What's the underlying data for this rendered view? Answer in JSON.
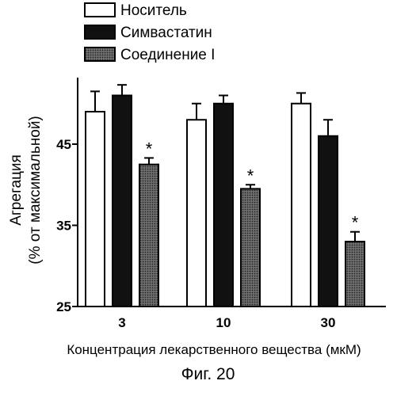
{
  "chart_data": {
    "type": "bar",
    "categories": [
      "3",
      "10",
      "30"
    ],
    "series": [
      {
        "name": "Носитель",
        "fill": "#ffffff",
        "values": [
          49,
          48,
          50
        ],
        "errors": [
          2.5,
          2,
          1.3
        ]
      },
      {
        "name": "Симвастатин",
        "fill": "#111111",
        "values": [
          51,
          50,
          46
        ],
        "errors": [
          1.3,
          1,
          2
        ]
      },
      {
        "name": "Соединение I",
        "fill": "#5a5a5a",
        "values": [
          42.5,
          39.5,
          33
        ],
        "errors": [
          0.8,
          0.5,
          1.2
        ]
      }
    ],
    "significance": [
      "*",
      "*",
      "*"
    ],
    "ylim": [
      25,
      53
    ],
    "yticks": [
      25,
      35,
      45
    ],
    "ylabel_line1": "Агрегация",
    "ylabel_line2": "(% от максимальной)",
    "xlabel": "Концентрация лекарственного вещества (мкМ)",
    "legend_position": "top-center"
  },
  "figure_caption": "Фиг. 20"
}
